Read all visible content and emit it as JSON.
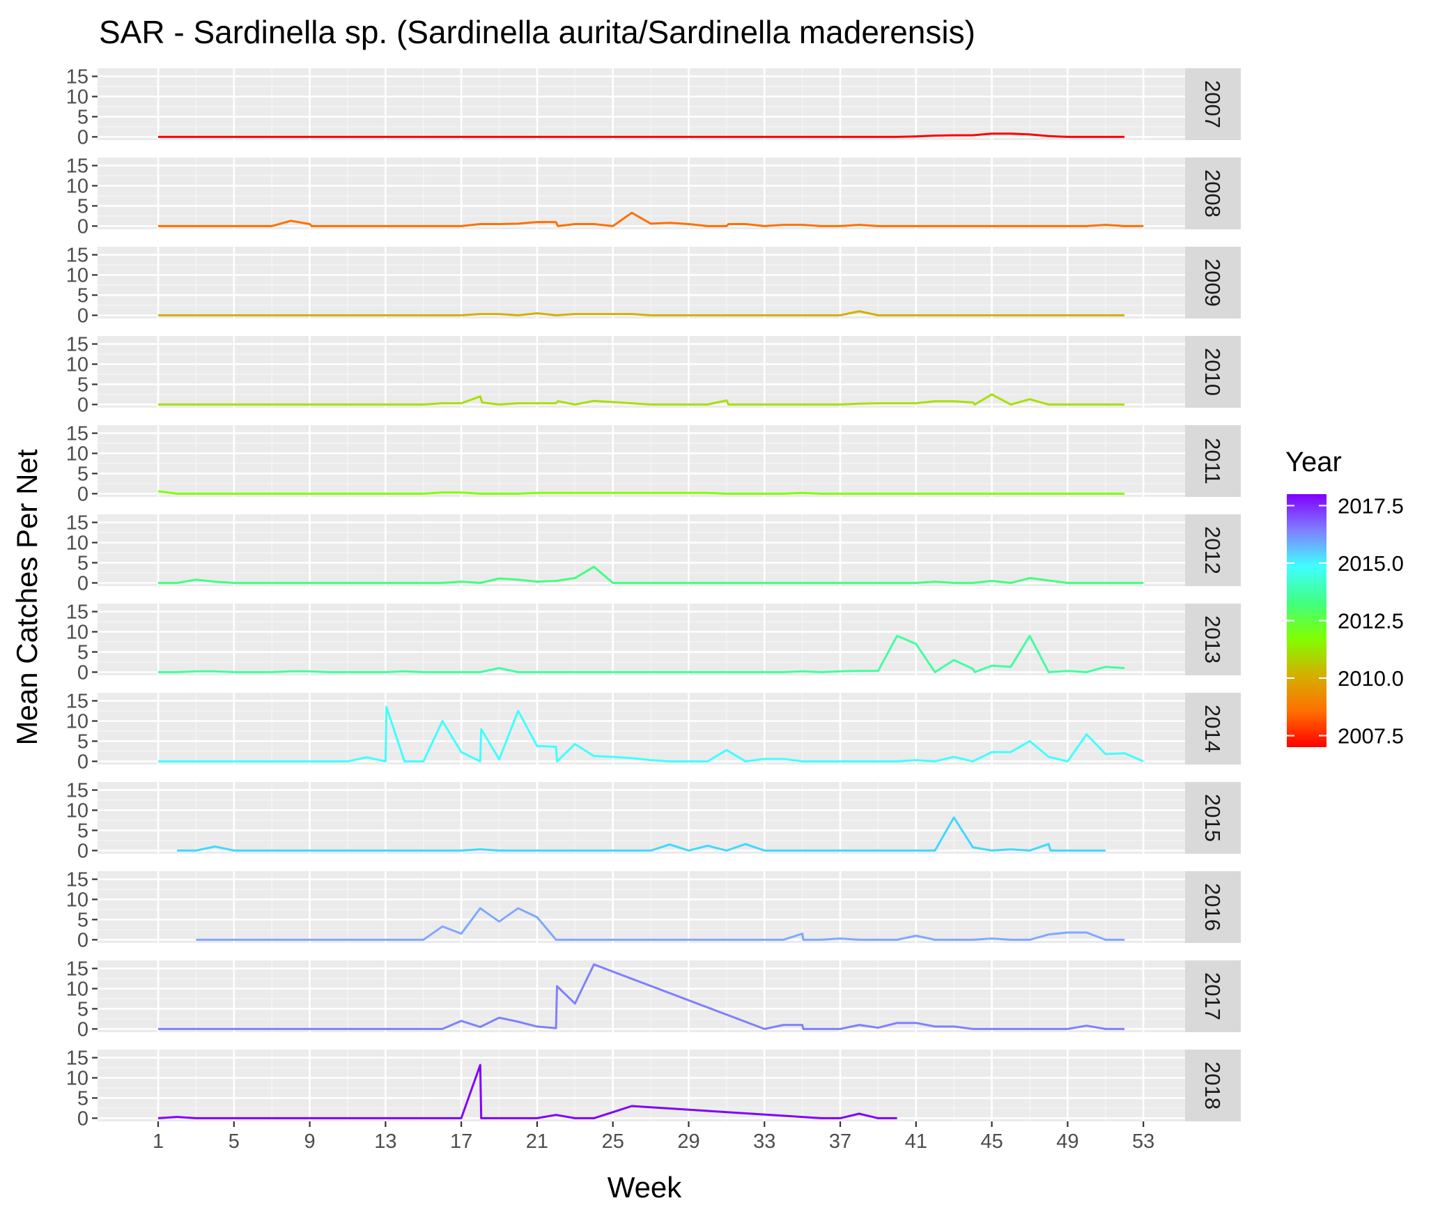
{
  "chart_data": {
    "type": "line",
    "title": "SAR - Sardinella sp. (Sardinella aurita/Sardinella maderensis)",
    "xlabel": "Week",
    "ylabel": "Mean Catches Per Net",
    "xlim": [
      -2.2,
      55.2
    ],
    "ylim": [
      -0.8,
      17.0
    ],
    "x_ticks": [
      1,
      5,
      9,
      13,
      17,
      21,
      25,
      29,
      33,
      37,
      41,
      45,
      49,
      53
    ],
    "y_ticks": [
      0,
      5,
      10,
      15
    ],
    "grid": true,
    "legend": {
      "title": "Year",
      "placement": "right",
      "type": "colorbar",
      "range": [
        2007,
        2018
      ],
      "ticks": [
        {
          "value": 2017.5,
          "label": "2017.5"
        },
        {
          "value": 2015.0,
          "label": "2015.0"
        },
        {
          "value": 2012.5,
          "label": "2012.5"
        },
        {
          "value": 2010.0,
          "label": "2010.0"
        },
        {
          "value": 2007.5,
          "label": "2007.5"
        }
      ],
      "gradient": [
        "#8000ff",
        "#8080ff",
        "#40ffff",
        "#40ff80",
        "#80ff00",
        "#d4b000",
        "#ff7000",
        "#ff0000"
      ]
    },
    "series": [
      {
        "name": "2007",
        "color": "#ff0000",
        "x": [
          1,
          2,
          3,
          4,
          5,
          6,
          7,
          8,
          9,
          10,
          11,
          12,
          13,
          14,
          15,
          16,
          17,
          18,
          19,
          20,
          21,
          22,
          23,
          24,
          25,
          26,
          27,
          28,
          29,
          30,
          31,
          32,
          33,
          34,
          35,
          36,
          37,
          38,
          39,
          40,
          41,
          42,
          43,
          44,
          45,
          46,
          47,
          48,
          49,
          50,
          51,
          52
        ],
        "y": [
          0,
          0,
          0,
          0,
          0,
          0,
          0,
          0,
          0,
          0,
          0,
          0,
          0,
          0,
          0,
          0,
          0,
          0,
          0,
          0,
          0,
          0,
          0,
          0,
          0,
          0,
          0,
          0,
          0,
          0,
          0,
          0,
          0,
          0,
          0,
          0,
          0,
          0,
          0,
          0,
          0.1,
          0.3,
          0.4,
          0.4,
          0.8,
          0.8,
          0.6,
          0.2,
          0,
          0,
          0,
          0
        ]
      },
      {
        "name": "2008",
        "color": "#ff7000",
        "x": [
          1,
          2,
          3,
          4,
          5,
          6,
          7,
          8,
          9,
          9.1,
          10,
          11,
          12,
          13,
          14,
          15,
          16,
          17,
          18,
          19,
          20,
          21,
          22,
          22.1,
          23,
          24,
          25,
          26,
          27,
          28,
          29,
          30,
          31,
          31.1,
          32,
          33,
          34,
          35,
          36,
          37,
          38,
          39,
          40,
          41,
          42,
          43,
          44,
          45,
          46,
          47,
          48,
          49,
          50,
          51,
          52,
          53
        ],
        "y": [
          0,
          0,
          0,
          0,
          0,
          0,
          0,
          1.3,
          0.5,
          0,
          0,
          0,
          0,
          0,
          0,
          0,
          0,
          0,
          0.5,
          0.5,
          0.6,
          1.0,
          1.0,
          0,
          0.5,
          0.5,
          0,
          3.3,
          0.6,
          0.8,
          0.5,
          0,
          0,
          0.5,
          0.5,
          0,
          0.3,
          0.3,
          0,
          0,
          0.3,
          0,
          0,
          0,
          0,
          0,
          0,
          0,
          0,
          0,
          0,
          0,
          0,
          0.3,
          0,
          0
        ]
      },
      {
        "name": "2009",
        "color": "#d4b000",
        "x": [
          1,
          2,
          3,
          4,
          5,
          6,
          7,
          8,
          9,
          10,
          11,
          12,
          13,
          14,
          15,
          16,
          17,
          18,
          19,
          20,
          21,
          22,
          23,
          24,
          25,
          26,
          27,
          28,
          29,
          30,
          31,
          32,
          33,
          34,
          35,
          36,
          37,
          38,
          39,
          40,
          41,
          42,
          43,
          44,
          45,
          46,
          47,
          48,
          49,
          50,
          51,
          52
        ],
        "y": [
          0,
          0,
          0,
          0,
          0,
          0,
          0,
          0,
          0,
          0,
          0,
          0,
          0,
          0,
          0,
          0,
          0,
          0.3,
          0.3,
          0,
          0.5,
          0,
          0.3,
          0.3,
          0.3,
          0.3,
          0,
          0,
          0,
          0,
          0,
          0,
          0,
          0,
          0,
          0,
          0,
          1.0,
          0,
          0,
          0,
          0,
          0,
          0,
          0,
          0,
          0,
          0,
          0,
          0,
          0,
          0
        ]
      },
      {
        "name": "2010",
        "color": "#a8e000",
        "x": [
          1,
          2,
          3,
          4,
          5,
          6,
          7,
          8,
          9,
          10,
          11,
          12,
          13,
          14,
          15,
          16,
          17,
          18,
          18.1,
          19,
          20,
          21,
          22,
          22.1,
          23,
          24,
          25,
          26,
          27,
          28,
          29,
          30,
          31,
          31.1,
          32,
          33,
          34,
          35,
          36,
          37,
          38,
          39,
          40,
          41,
          42,
          43,
          44,
          44.1,
          45,
          46,
          47,
          48,
          49,
          50,
          51,
          52
        ],
        "y": [
          0,
          0,
          0,
          0,
          0,
          0,
          0,
          0,
          0,
          0,
          0,
          0,
          0,
          0,
          0,
          0.3,
          0.3,
          2.0,
          0.5,
          0,
          0.3,
          0.3,
          0.3,
          0.8,
          0,
          0.9,
          0.6,
          0.3,
          0,
          0,
          0,
          0,
          1.0,
          0,
          0,
          0,
          0,
          0,
          0,
          0,
          0.2,
          0.3,
          0.3,
          0.3,
          0.8,
          0.8,
          0.5,
          0,
          2.5,
          0,
          1.3,
          0,
          0,
          0,
          0,
          0
        ]
      },
      {
        "name": "2011",
        "color": "#80ff00",
        "x": [
          1,
          2,
          3,
          4,
          5,
          6,
          7,
          8,
          9,
          10,
          11,
          12,
          13,
          14,
          15,
          16,
          17,
          18,
          19,
          20,
          21,
          22,
          23,
          24,
          25,
          26,
          27,
          28,
          29,
          30,
          31,
          32,
          33,
          34,
          35,
          36,
          37,
          38,
          39,
          40,
          41,
          42,
          43,
          44,
          45,
          46,
          47,
          48,
          49,
          50,
          51,
          52
        ],
        "y": [
          0.6,
          0,
          0,
          0,
          0,
          0,
          0,
          0,
          0,
          0,
          0,
          0,
          0,
          0,
          0,
          0.3,
          0.3,
          0,
          0,
          0,
          0.2,
          0.2,
          0.2,
          0.2,
          0.2,
          0.2,
          0.2,
          0.2,
          0.2,
          0.2,
          0,
          0,
          0,
          0,
          0.2,
          0,
          0,
          0,
          0,
          0,
          0,
          0,
          0,
          0,
          0,
          0,
          0,
          0,
          0,
          0,
          0,
          0
        ]
      },
      {
        "name": "2012",
        "color": "#40ff80",
        "x": [
          1,
          2,
          3,
          4,
          5,
          6,
          7,
          8,
          9,
          10,
          11,
          12,
          13,
          14,
          15,
          16,
          17,
          18,
          19,
          20,
          21,
          22,
          23,
          24,
          25,
          26,
          27,
          28,
          29,
          30,
          31,
          32,
          33,
          34,
          35,
          36,
          37,
          38,
          39,
          40,
          41,
          42,
          43,
          44,
          45,
          46,
          47,
          48,
          49,
          50,
          51,
          52,
          53
        ],
        "y": [
          0,
          0,
          0.8,
          0.3,
          0,
          0,
          0,
          0,
          0,
          0,
          0,
          0,
          0,
          0,
          0,
          0,
          0.3,
          0,
          1.1,
          0.8,
          0.3,
          0.5,
          1.2,
          4.0,
          0,
          0,
          0,
          0,
          0,
          0,
          0,
          0,
          0,
          0,
          0,
          0,
          0,
          0,
          0,
          0,
          0,
          0.3,
          0,
          0,
          0.5,
          0,
          1.2,
          0.6,
          0,
          0,
          0,
          0,
          0
        ]
      },
      {
        "name": "2013",
        "color": "#40ffa0",
        "x": [
          1,
          2,
          3,
          4,
          5,
          6,
          7,
          8,
          9,
          10,
          11,
          12,
          13,
          14,
          15,
          16,
          17,
          18,
          19,
          20,
          21,
          22,
          23,
          24,
          25,
          26,
          27,
          28,
          29,
          30,
          31,
          32,
          33,
          34,
          35,
          36,
          37,
          38,
          39,
          40,
          41,
          42,
          43,
          44,
          44.1,
          45,
          46,
          47,
          48,
          49,
          50,
          51,
          52
        ],
        "y": [
          0,
          0,
          0.2,
          0.2,
          0,
          0,
          0,
          0.2,
          0.2,
          0,
          0,
          0,
          0,
          0.2,
          0,
          0,
          0,
          0,
          1.0,
          0,
          0,
          0,
          0,
          0,
          0,
          0,
          0,
          0,
          0,
          0,
          0,
          0,
          0,
          0,
          0.2,
          0,
          0.2,
          0.3,
          0.3,
          9.0,
          7.0,
          0,
          3.0,
          0.8,
          0,
          1.6,
          1.3,
          9.0,
          0,
          0.3,
          0,
          1.3,
          1.0
        ]
      },
      {
        "name": "2014",
        "color": "#40ffff",
        "x": [
          1,
          2,
          3,
          4,
          5,
          6,
          7,
          8,
          9,
          10,
          11,
          12,
          13,
          13.05,
          14,
          15,
          16,
          17,
          18,
          18.05,
          19,
          20,
          21,
          22,
          22.05,
          23,
          24,
          25,
          26,
          27,
          28,
          29,
          30,
          31,
          32,
          33,
          34,
          35,
          36,
          37,
          38,
          39,
          40,
          41,
          42,
          43,
          44,
          45,
          46,
          47,
          48,
          49,
          50,
          51,
          52,
          53
        ],
        "y": [
          0,
          0,
          0,
          0,
          0,
          0,
          0,
          0,
          0,
          0,
          0,
          1.0,
          0,
          13.5,
          0,
          0,
          10.0,
          2.3,
          0,
          8.0,
          0.5,
          12.5,
          3.8,
          3.6,
          0,
          4.3,
          1.3,
          1.1,
          0.8,
          0.3,
          0,
          0,
          0,
          2.8,
          0,
          0.6,
          0.6,
          0,
          0,
          0,
          0,
          0,
          0,
          0.3,
          0,
          1.1,
          0,
          2.3,
          2.3,
          5.0,
          1.1,
          0,
          6.7,
          1.8,
          2.0,
          0
        ]
      },
      {
        "name": "2015",
        "color": "#40d8ff",
        "x": [
          2,
          3,
          4,
          5,
          6,
          7,
          8,
          9,
          10,
          11,
          12,
          13,
          14,
          15,
          16,
          17,
          18,
          19,
          20,
          21,
          22,
          23,
          24,
          25,
          26,
          27,
          28,
          29,
          30,
          31,
          32,
          33,
          34,
          35,
          36,
          37,
          38,
          39,
          40,
          41,
          42,
          43,
          44,
          45,
          46,
          47,
          48,
          48.1,
          49,
          50,
          51
        ],
        "y": [
          0,
          0,
          1.0,
          0,
          0,
          0,
          0,
          0,
          0,
          0,
          0,
          0,
          0,
          0,
          0,
          0,
          0.3,
          0,
          0,
          0,
          0,
          0,
          0,
          0,
          0,
          0,
          1.5,
          0,
          1.2,
          0,
          1.6,
          0,
          0,
          0,
          0,
          0,
          0,
          0,
          0,
          0,
          0,
          8.2,
          0.8,
          0,
          0.3,
          0,
          1.6,
          0,
          0,
          0,
          0
        ]
      },
      {
        "name": "2016",
        "color": "#80a8ff",
        "x": [
          3,
          4,
          5,
          6,
          7,
          8,
          9,
          10,
          11,
          12,
          13,
          14,
          15,
          16,
          17,
          18,
          19,
          20,
          21,
          22,
          23,
          24,
          25,
          26,
          27,
          28,
          29,
          30,
          31,
          32,
          33,
          34,
          35,
          35.05,
          36,
          37,
          38,
          39,
          40,
          41,
          42,
          43,
          44,
          45,
          46,
          47,
          48,
          49,
          50,
          51,
          52
        ],
        "y": [
          0,
          0,
          0,
          0,
          0,
          0,
          0,
          0,
          0,
          0,
          0,
          0,
          0,
          3.3,
          1.5,
          7.8,
          4.5,
          7.8,
          5.6,
          0,
          0,
          0,
          0,
          0,
          0,
          0,
          0,
          0,
          0,
          0,
          0,
          0,
          1.5,
          0,
          0,
          0.3,
          0,
          0,
          0,
          1.0,
          0,
          0,
          0,
          0.3,
          0,
          0,
          1.3,
          1.8,
          1.8,
          0,
          0
        ]
      },
      {
        "name": "2017",
        "color": "#8080ff",
        "x": [
          1,
          2,
          3,
          4,
          5,
          6,
          7,
          8,
          9,
          10,
          11,
          12,
          13,
          14,
          15,
          16,
          17,
          18,
          19,
          20,
          21,
          22,
          22.05,
          23,
          24,
          33,
          34,
          35,
          35.05,
          36,
          37,
          38,
          39,
          40,
          41,
          42,
          43,
          44,
          45,
          46,
          47,
          48,
          49,
          50,
          51,
          52
        ],
        "y": [
          0,
          0,
          0,
          0,
          0,
          0,
          0,
          0,
          0,
          0,
          0,
          0,
          0,
          0,
          0,
          0,
          2.0,
          0.5,
          2.8,
          1.8,
          0.6,
          0.2,
          10.6,
          6.3,
          16.0,
          0,
          1.0,
          1.0,
          0,
          0,
          0,
          1.0,
          0.3,
          1.5,
          1.5,
          0.6,
          0.6,
          0,
          0,
          0,
          0,
          0,
          0,
          0.8,
          0,
          0
        ]
      },
      {
        "name": "2018",
        "color": "#8000ff",
        "x": [
          1,
          2,
          3,
          4,
          5,
          6,
          7,
          8,
          9,
          10,
          11,
          12,
          13,
          14,
          15,
          16,
          17,
          18,
          18.05,
          19,
          20,
          21,
          22,
          23,
          24,
          26,
          36,
          37,
          38,
          39,
          40
        ],
        "y": [
          0,
          0.3,
          0,
          0,
          0,
          0,
          0,
          0,
          0,
          0,
          0,
          0,
          0,
          0,
          0,
          0,
          0,
          13.2,
          0,
          0,
          0,
          0,
          0.8,
          0,
          0,
          3.0,
          0,
          0,
          1.1,
          0,
          0
        ]
      }
    ]
  }
}
